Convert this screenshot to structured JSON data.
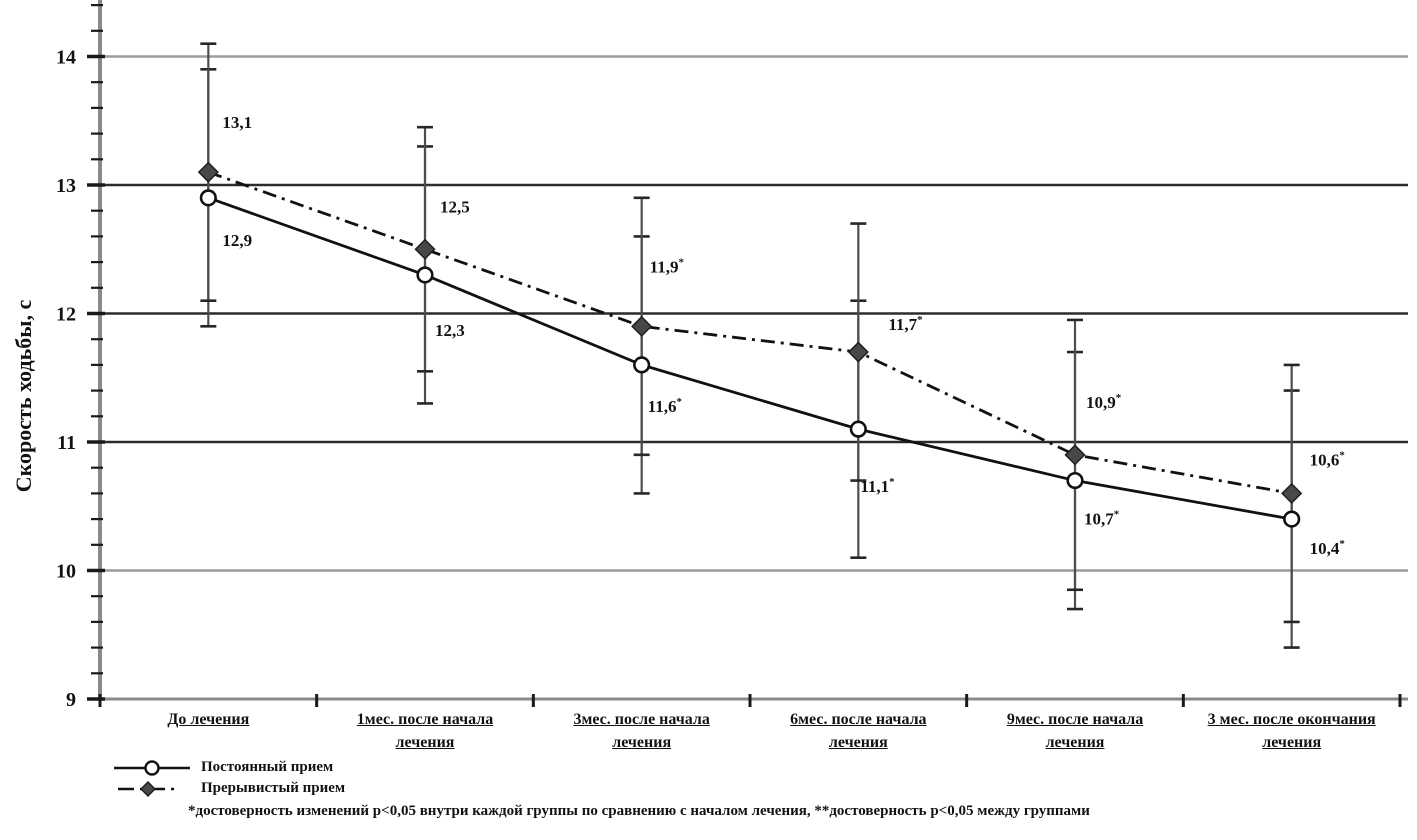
{
  "page": {
    "background": "#ffffff",
    "description": "Scanned grayscale line chart of walking speed over treatment time for two regimens"
  },
  "colors": {
    "ink": "#161616",
    "grid_dark": "#2e2e2e",
    "grid_light": "#9a9a9a",
    "axis": "#8a8a8a",
    "tick": "#1d1d1d",
    "error": "#4f4f4f",
    "diamond_fill": "#4a4a4a",
    "line": "#151515",
    "marker_fill": "#ffffff"
  },
  "chart_data": {
    "type": "line",
    "title": "",
    "xlabel": "",
    "ylabel": "Скорость ходьбы, с",
    "ylim": [
      9,
      14.45
    ],
    "yticks": [
      9,
      10,
      11,
      12,
      13,
      14
    ],
    "y_minor_step": 0.2,
    "grid": "horizontal",
    "legend_position": "bottom-left",
    "categories": [
      "До лечения",
      "1мес. после начала\nлечения",
      "3мес. после начала\nлечения",
      "6мес. после начала\nлечения",
      "9мес. после начала\nлечения",
      "3 мес. после окончания\nлечения"
    ],
    "series": [
      {
        "name": "Постоянный прием",
        "marker": "circle-open",
        "line": "solid",
        "values": [
          12.9,
          12.3,
          11.6,
          11.1,
          10.7,
          10.4
        ],
        "labels": [
          "12,9",
          "12,3",
          "11,6*",
          "11,1*",
          "10,7*",
          "10,4*"
        ],
        "errors": [
          1.0,
          1.0,
          1.0,
          1.0,
          1.0,
          1.0
        ]
      },
      {
        "name": "Прерывистый прием",
        "marker": "diamond-filled",
        "line": "dash-dot",
        "values": [
          13.1,
          12.5,
          11.9,
          11.7,
          10.9,
          10.6
        ],
        "labels": [
          "13,1",
          "12,5",
          "11,9*",
          "11,7*",
          "10,9*",
          "10,6*"
        ],
        "errors": [
          1.0,
          0.95,
          1.0,
          1.0,
          1.05,
          1.0
        ]
      }
    ],
    "footnote": "*достоверность изменений р<0,05 внутри каждой группы по сравнению с началом лечения, **достоверность р<0,05 между группами"
  }
}
